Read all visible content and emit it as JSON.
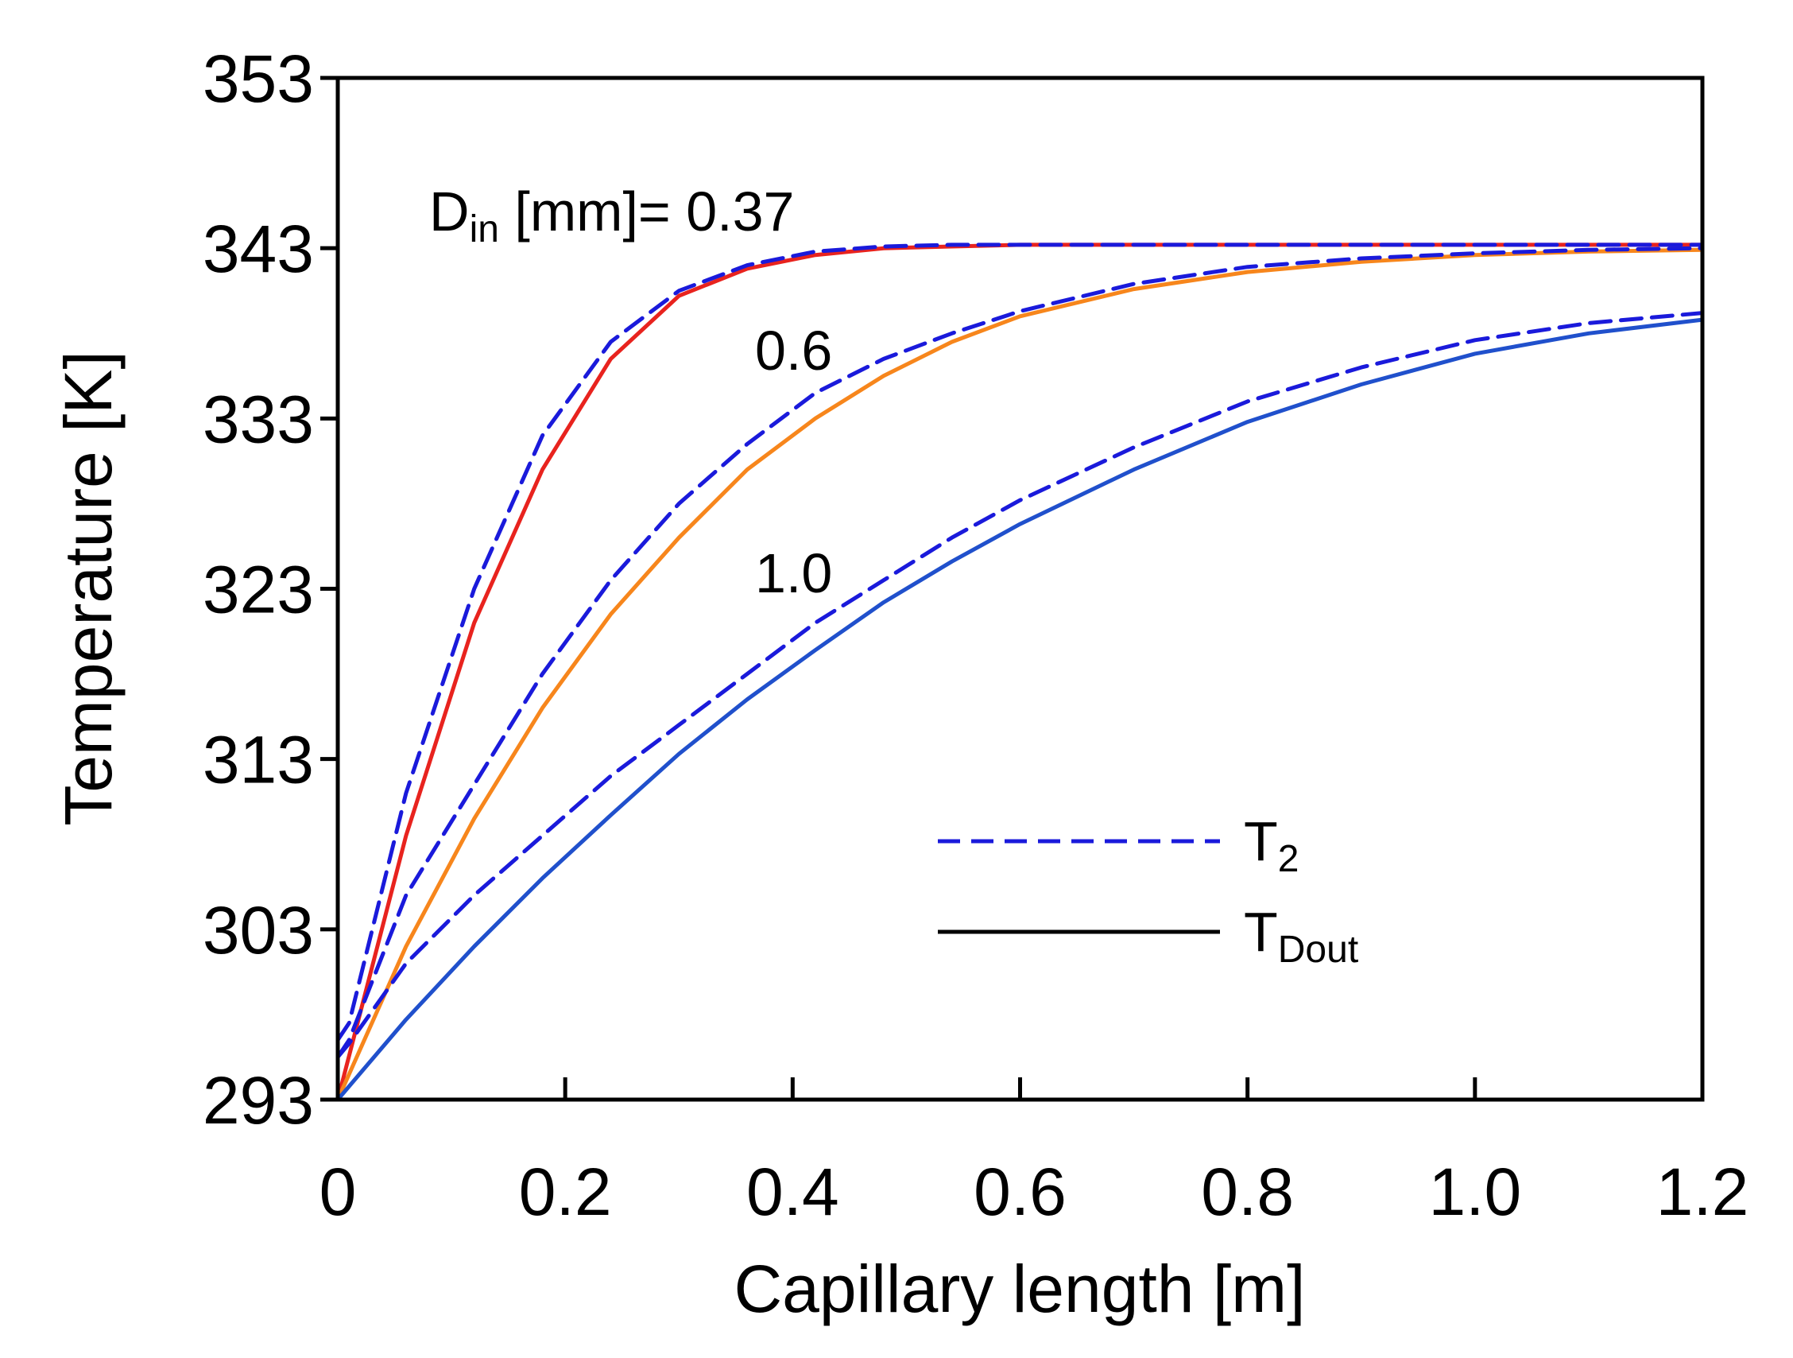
{
  "chart_data": {
    "type": "line",
    "title": "",
    "xlabel": "Capillary length [m]",
    "ylabel": "Temperature [K]",
    "xlim": [
      0,
      1.2
    ],
    "ylim": [
      293,
      353
    ],
    "x_ticks": [
      "0",
      "0.2",
      "0.4",
      "0.6",
      "0.8",
      "1.0",
      "1.2"
    ],
    "y_ticks": [
      "293",
      "303",
      "313",
      "323",
      "333",
      "343",
      "353"
    ],
    "grid": false,
    "legend_position": "bottom-right",
    "legend": [
      {
        "base": "T",
        "sub": "2",
        "style": "dashed",
        "color": "#1a1adb"
      },
      {
        "base": "T",
        "sub": "Dout",
        "style": "solid",
        "color": "#000000"
      }
    ],
    "annotations": {
      "d037_prefix": "D",
      "d037_sub": "in",
      "d037_suffix": " [mm]= 0.37",
      "d06": "0.6",
      "d10": "1.0"
    },
    "series": [
      {
        "name": "T2 (Din = 0.37)",
        "style": "dashed",
        "color": "#1a1adb",
        "x": [
          0,
          0.01,
          0.06,
          0.12,
          0.18,
          0.24,
          0.3,
          0.36,
          0.42,
          0.48,
          0.54,
          0.6,
          0.7,
          0.8,
          0.9,
          1.0,
          1.1,
          1.2
        ],
        "y": [
          296.5,
          297.5,
          311,
          323,
          332,
          337.5,
          340.5,
          342,
          342.8,
          343.1,
          343.2,
          343.2,
          343.2,
          343.2,
          343.2,
          343.2,
          343.2,
          343.2
        ]
      },
      {
        "name": "TDout (Din = 0.37)",
        "style": "solid",
        "color": "#e8231e",
        "x": [
          0,
          0.06,
          0.12,
          0.18,
          0.24,
          0.3,
          0.36,
          0.42,
          0.48,
          0.54,
          0.6,
          0.7,
          0.8,
          0.9,
          1.0,
          1.1,
          1.2
        ],
        "y": [
          293,
          308.5,
          321,
          330,
          336.5,
          340.2,
          341.8,
          342.6,
          343,
          343.1,
          343.2,
          343.2,
          343.2,
          343.2,
          343.2,
          343.2,
          343.2
        ]
      },
      {
        "name": "T2 (Din = 0.6)",
        "style": "dashed",
        "color": "#1a1adb",
        "x": [
          0,
          0.01,
          0.06,
          0.12,
          0.18,
          0.24,
          0.3,
          0.36,
          0.42,
          0.48,
          0.54,
          0.6,
          0.7,
          0.8,
          0.9,
          1.0,
          1.1,
          1.2
        ],
        "y": [
          295.5,
          296.5,
          305,
          311.5,
          318,
          323.5,
          328,
          331.5,
          334.5,
          336.5,
          338,
          339.3,
          340.9,
          341.9,
          342.4,
          342.7,
          342.9,
          343
        ]
      },
      {
        "name": "TDout (Din = 0.6)",
        "style": "solid",
        "color": "#f7861c",
        "x": [
          0,
          0.06,
          0.12,
          0.18,
          0.24,
          0.3,
          0.36,
          0.42,
          0.48,
          0.54,
          0.6,
          0.7,
          0.8,
          0.9,
          1.0,
          1.1,
          1.2
        ],
        "y": [
          293,
          302,
          309.5,
          316,
          321.5,
          326,
          330,
          333,
          335.5,
          337.5,
          339,
          340.6,
          341.6,
          342.2,
          342.6,
          342.8,
          342.9
        ]
      },
      {
        "name": "T2 (Din = 1.0)",
        "style": "dashed",
        "color": "#1a1adb",
        "x": [
          0,
          0.01,
          0.06,
          0.12,
          0.18,
          0.24,
          0.3,
          0.36,
          0.42,
          0.48,
          0.54,
          0.6,
          0.7,
          0.8,
          0.9,
          1.0,
          1.1,
          1.2
        ],
        "y": [
          295.5,
          296.3,
          301,
          305,
          308.5,
          312,
          315,
          318,
          321,
          323.5,
          326,
          328.2,
          331.3,
          334,
          336,
          337.6,
          338.6,
          339.2
        ]
      },
      {
        "name": "TDout (Din = 1.0)",
        "style": "solid",
        "color": "#2050cc",
        "x": [
          0,
          0.06,
          0.12,
          0.18,
          0.24,
          0.3,
          0.36,
          0.42,
          0.48,
          0.54,
          0.6,
          0.7,
          0.8,
          0.9,
          1.0,
          1.1,
          1.2
        ],
        "y": [
          293,
          297.7,
          302,
          306,
          309.7,
          313.3,
          316.5,
          319.4,
          322.2,
          324.6,
          326.8,
          330,
          332.8,
          335,
          336.8,
          338,
          338.8
        ]
      }
    ]
  }
}
